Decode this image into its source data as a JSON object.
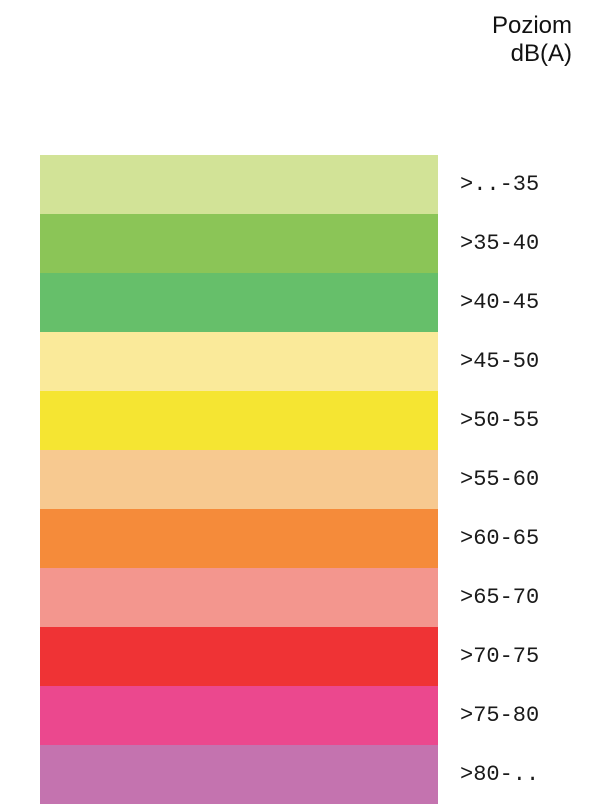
{
  "legend": {
    "title_line1": "Poziom",
    "title_line2": "dB(A)",
    "items": [
      {
        "label": ">..-35",
        "color": "#d2e397"
      },
      {
        "label": ">35-40",
        "color": "#8bc557"
      },
      {
        "label": ">40-45",
        "color": "#66bf6a"
      },
      {
        "label": ">45-50",
        "color": "#faea9a"
      },
      {
        "label": ">50-55",
        "color": "#f5e532"
      },
      {
        "label": ">55-60",
        "color": "#f7c990"
      },
      {
        "label": ">60-65",
        "color": "#f58b3a"
      },
      {
        "label": ">65-70",
        "color": "#f3968e"
      },
      {
        "label": ">70-75",
        "color": "#ef3335"
      },
      {
        "label": ">75-80",
        "color": "#eb488e"
      },
      {
        "label": ">80-..",
        "color": "#c473af"
      }
    ]
  }
}
